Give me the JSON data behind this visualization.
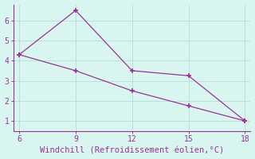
{
  "line1_x": [
    6,
    9,
    12,
    15,
    18
  ],
  "line1_y": [
    4.3,
    6.5,
    3.5,
    3.25,
    1.0
  ],
  "line2_x": [
    6,
    9,
    12,
    15,
    18
  ],
  "line2_y": [
    4.3,
    3.5,
    2.5,
    1.75,
    1.0
  ],
  "line_color": "#993399",
  "marker": "+",
  "marker_size": 5,
  "marker_lw": 1.2,
  "xlim": [
    5.7,
    18.3
  ],
  "ylim": [
    0.5,
    6.8
  ],
  "xticks": [
    6,
    9,
    12,
    15,
    18
  ],
  "yticks": [
    1,
    2,
    3,
    4,
    5,
    6
  ],
  "xlabel": "Windchill (Refroidissement éolien,°C)",
  "background_color": "#d8f5f0",
  "grid_color": "#b8ddd8",
  "xlabel_color": "#993399",
  "xlabel_fontsize": 7.5,
  "tick_fontsize": 7,
  "linewidth": 0.9
}
